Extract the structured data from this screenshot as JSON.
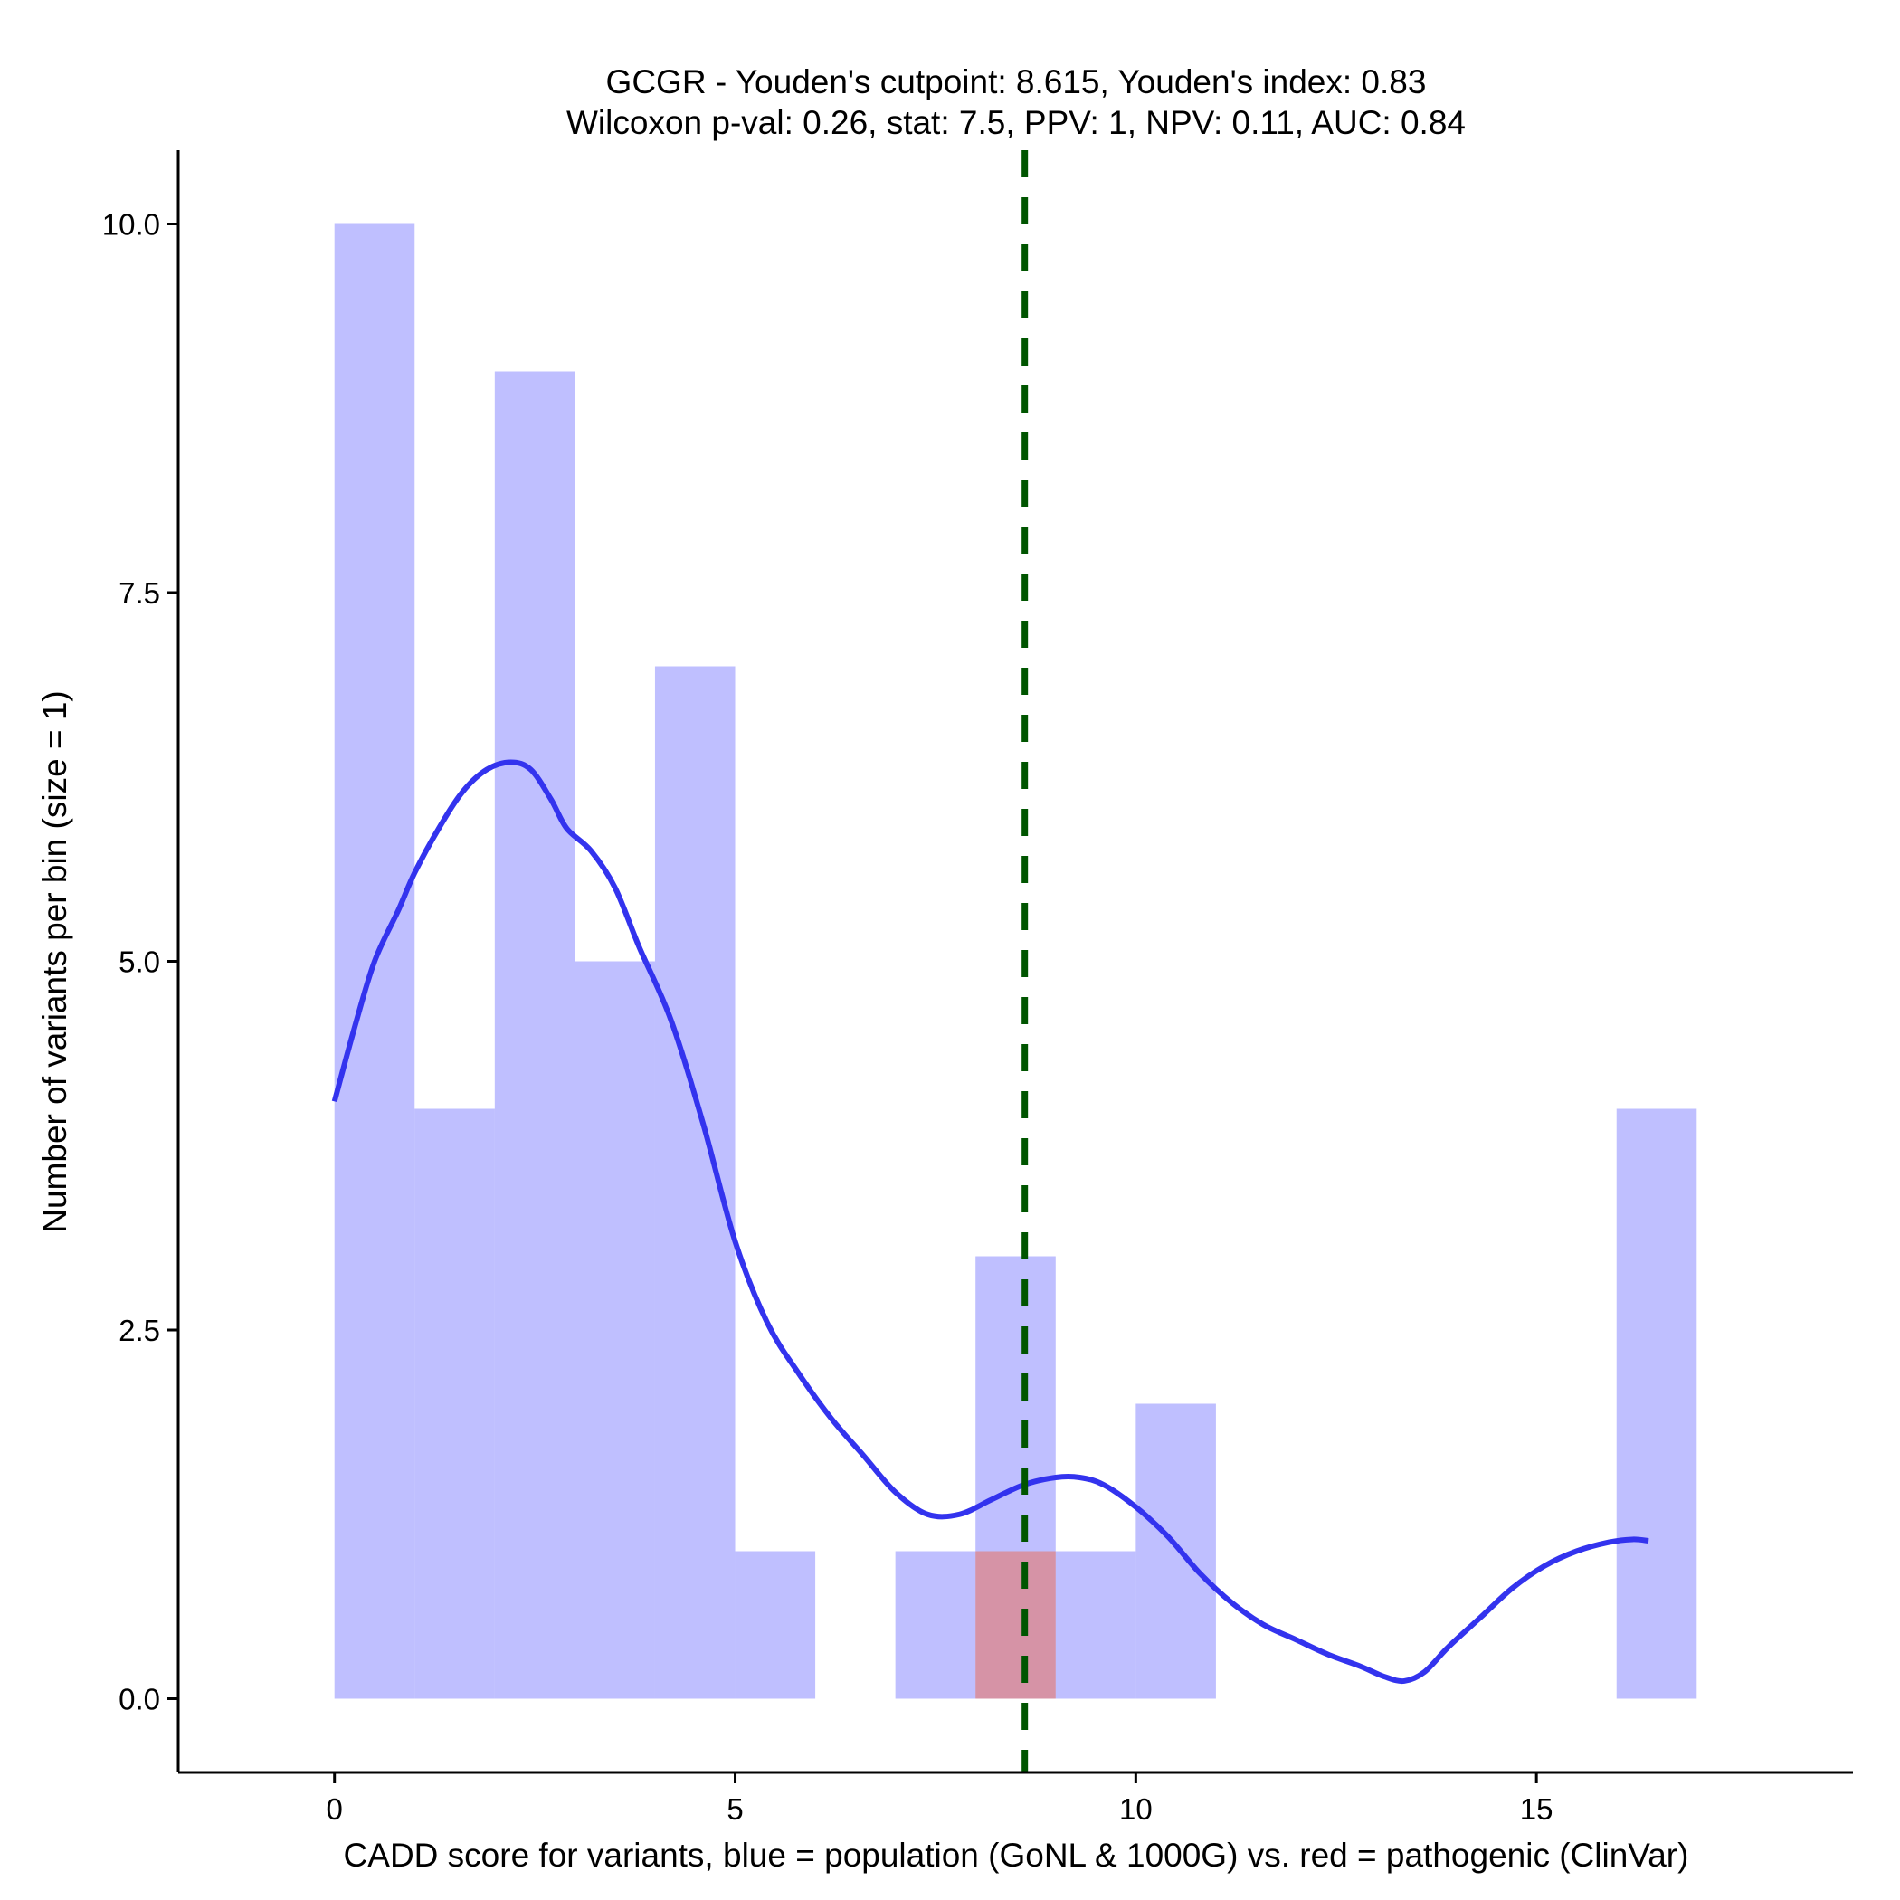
{
  "chart_data": {
    "type": "histogram",
    "title": "GCGR - Youden's cutpoint: 8.615, Youden's index: 0.83",
    "subtitle": "Wilcoxon p-val: 0.26, stat: 7.5, PPV: 1, NPV: 0.11, AUC: 0.84",
    "xlabel": "CADD score for variants, blue = population (GoNL & 1000G) vs. red = pathogenic (ClinVar)",
    "ylabel": "Number of variants per bin (size = 1)",
    "xlim": [
      -1.95,
      18.95
    ],
    "ylim": [
      -0.5,
      10.5
    ],
    "xticks": [
      0,
      5,
      10,
      15
    ],
    "xtick_labels": [
      "0",
      "5",
      "10",
      "15"
    ],
    "yticks": [
      0,
      2.5,
      5,
      7.5,
      10
    ],
    "ytick_labels": [
      "0.0",
      "2.5",
      "5.0",
      "7.5",
      "10.0"
    ],
    "bin_size": 1,
    "series": [
      {
        "name": "population (GoNL & 1000G)",
        "color": "#8080ff",
        "opacity": 0.5,
        "bins": [
          {
            "x0": 0,
            "x1": 1,
            "count": 10
          },
          {
            "x0": 1,
            "x1": 2,
            "count": 4
          },
          {
            "x0": 2,
            "x1": 3,
            "count": 9
          },
          {
            "x0": 3,
            "x1": 4,
            "count": 5
          },
          {
            "x0": 4,
            "x1": 5,
            "count": 7
          },
          {
            "x0": 5,
            "x1": 6,
            "count": 1
          },
          {
            "x0": 7,
            "x1": 8,
            "count": 1
          },
          {
            "x0": 8,
            "x1": 9,
            "count": 3
          },
          {
            "x0": 9,
            "x1": 10,
            "count": 1
          },
          {
            "x0": 10,
            "x1": 11,
            "count": 2
          },
          {
            "x0": 16,
            "x1": 17,
            "count": 4
          }
        ]
      },
      {
        "name": "pathogenic (ClinVar)",
        "color": "#e08080",
        "opacity": 0.7,
        "bins": [
          {
            "x0": 8,
            "x1": 9,
            "count": 1
          }
        ]
      }
    ],
    "density_curve": {
      "color": "#3333ee",
      "points": [
        [
          0.0,
          4.05
        ],
        [
          0.25,
          4.55
        ],
        [
          0.5,
          5.0
        ],
        [
          0.8,
          5.35
        ],
        [
          1.0,
          5.6
        ],
        [
          1.3,
          5.9
        ],
        [
          1.6,
          6.15
        ],
        [
          1.9,
          6.3
        ],
        [
          2.2,
          6.35
        ],
        [
          2.45,
          6.3
        ],
        [
          2.7,
          6.1
        ],
        [
          2.9,
          5.9
        ],
        [
          3.2,
          5.75
        ],
        [
          3.5,
          5.5
        ],
        [
          3.8,
          5.1
        ],
        [
          4.2,
          4.6
        ],
        [
          4.6,
          3.9
        ],
        [
          5.0,
          3.1
        ],
        [
          5.4,
          2.55
        ],
        [
          5.8,
          2.2
        ],
        [
          6.2,
          1.9
        ],
        [
          6.6,
          1.65
        ],
        [
          7.0,
          1.4
        ],
        [
          7.4,
          1.25
        ],
        [
          7.8,
          1.25
        ],
        [
          8.2,
          1.35
        ],
        [
          8.6,
          1.45
        ],
        [
          9.0,
          1.5
        ],
        [
          9.3,
          1.5
        ],
        [
          9.6,
          1.45
        ],
        [
          10.0,
          1.3
        ],
        [
          10.4,
          1.1
        ],
        [
          10.8,
          0.85
        ],
        [
          11.2,
          0.65
        ],
        [
          11.6,
          0.5
        ],
        [
          12.0,
          0.4
        ],
        [
          12.4,
          0.3
        ],
        [
          12.8,
          0.22
        ],
        [
          13.1,
          0.15
        ],
        [
          13.35,
          0.12
        ],
        [
          13.6,
          0.18
        ],
        [
          13.9,
          0.35
        ],
        [
          14.3,
          0.55
        ],
        [
          14.7,
          0.75
        ],
        [
          15.1,
          0.9
        ],
        [
          15.5,
          1.0
        ],
        [
          15.9,
          1.06
        ],
        [
          16.2,
          1.08
        ],
        [
          16.4,
          1.07
        ]
      ]
    },
    "cutpoint": {
      "x": 8.615,
      "color": "#005500",
      "style": "dashed"
    }
  }
}
